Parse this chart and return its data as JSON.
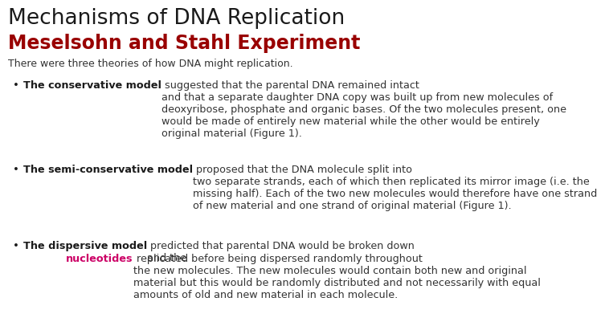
{
  "title": "Mechanisms of DNA Replication",
  "subtitle": "Meselsohn and Stahl Experiment",
  "intro": "There were three theories of how DNA might replication.",
  "bullet1_bold": "The conservative model",
  "bullet1_rest": " suggested that the parental DNA remained intact\nand that a separate daughter DNA copy was built up from new molecules of\ndeoxyribose, phosphate and organic bases. Of the two molecules present, one\nwould be made of entirely new material while the other would be entirely\noriginal material (Figure 1).",
  "bullet2_bold": "The semi-conservative model",
  "bullet2_rest": " proposed that the DNA molecule split into\ntwo separate strands, each of which then replicated its mirror image (i.e. the\nmissing half). Each of the two new molecules would therefore have one strand\nof new material and one strand of original material (Figure 1).",
  "bullet3_bold": "The dispersive model",
  "bullet3_pre": " predicted that parental DNA would be broken down\nand the ",
  "bullet3_colored": "nucleotides",
  "bullet3_post": " replicated before being dispersed randomly throughout\nthe new molecules. The new molecules would contain both new and original\nmaterial but this would be randomly distributed and not necessarily with equal\namounts of old and new material in each molecule.",
  "bg_color": "#ffffff",
  "title_color": "#1a1a1a",
  "subtitle_color": "#990000",
  "intro_color": "#333333",
  "bold_color": "#1a1a1a",
  "normal_color": "#333333",
  "nucleotides_color": "#cc0066"
}
